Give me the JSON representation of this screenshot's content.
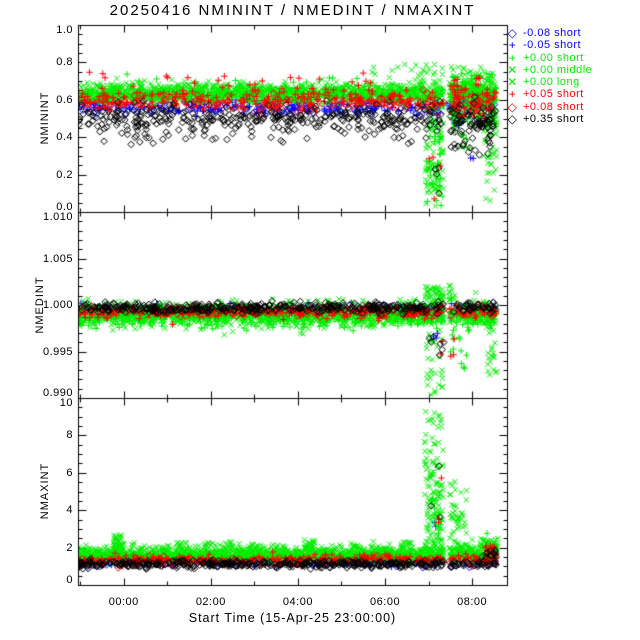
{
  "chart_data": {
    "type": "scatter",
    "title": "20250416 NMININT / NMEDINT / NMAXINT",
    "xlabel": "Start Time (15-Apr-25 23:00:00)",
    "background_color": "#ffffff",
    "axis_color": "#000000",
    "x_axis": {
      "unit": "hours relative to 2025-04-16 00:00",
      "range_hours": [
        -1.05,
        8.8
      ],
      "major_ticks": [
        {
          "h": 0,
          "label": "00:00"
        },
        {
          "h": 2,
          "label": "02:00"
        },
        {
          "h": 4,
          "label": "04:00"
        },
        {
          "h": 6,
          "label": "06:00"
        },
        {
          "h": 8,
          "label": "08:00"
        }
      ],
      "minor_step_hours": 1
    },
    "panels": [
      {
        "ylabel": "NMININT",
        "ylim": [
          0.0,
          1.0
        ],
        "minor": 0.05,
        "yticks": [
          {
            "v": 0.0,
            "label": "0.0"
          },
          {
            "v": 0.2,
            "label": "0.2"
          },
          {
            "v": 0.4,
            "label": "0.4"
          },
          {
            "v": 0.6,
            "label": "0.6"
          },
          {
            "v": 0.8,
            "label": "0.8"
          },
          {
            "v": 1.0,
            "label": "1.0"
          }
        ]
      },
      {
        "ylabel": "NMEDINT",
        "ylim": [
          0.99,
          1.01
        ],
        "minor": 0.001,
        "yticks": [
          {
            "v": 0.99,
            "label": "0.990"
          },
          {
            "v": 0.995,
            "label": "0.995"
          },
          {
            "v": 1.0,
            "label": "1.000"
          },
          {
            "v": 1.005,
            "label": "1.005"
          },
          {
            "v": 1.01,
            "label": "1.010"
          }
        ]
      },
      {
        "ylabel": "NMAXINT",
        "ylim": [
          0,
          10
        ],
        "minor": 0.5,
        "yticks": [
          {
            "v": 0,
            "label": "0"
          },
          {
            "v": 2,
            "label": "2"
          },
          {
            "v": 4,
            "label": "4"
          },
          {
            "v": 6,
            "label": "6"
          },
          {
            "v": 8,
            "label": "8"
          },
          {
            "v": 10,
            "label": "10"
          }
        ]
      }
    ],
    "events": {
      "data_start_hour": -1.03,
      "data_end_hour": 8.55,
      "data_gap_hours": [
        7.35,
        7.47
      ]
    },
    "series": [
      {
        "label": "-0.08 short",
        "color": "#0000ff",
        "marker": "diamond",
        "bands": [
          {
            "base": 0.555,
            "sigma": 0.02,
            "n": 130
          },
          {
            "base": 0.99945,
            "sigma": 0.0003,
            "n": 110
          },
          {
            "base": 1.18,
            "sigma": 0.1,
            "n": 110
          }
        ]
      },
      {
        "label": "-0.05 short",
        "color": "#0000ff",
        "marker": "plus",
        "bands": [
          {
            "base": 0.565,
            "sigma": 0.022,
            "n": 190
          },
          {
            "base": 0.9994,
            "sigma": 0.00035,
            "n": 160
          },
          {
            "base": 1.22,
            "sigma": 0.12,
            "n": 160
          }
        ]
      },
      {
        "label": "+0.00 short",
        "color": "#00ee00",
        "marker": "plus",
        "bands": [
          {
            "base": 0.615,
            "sigma": 0.02,
            "n": 560
          },
          {
            "base": 0.9987,
            "sigma": 0.00055,
            "n": 560
          },
          {
            "base": 1.5,
            "sigma": 0.13,
            "n": 600
          }
        ]
      },
      {
        "label": "+0.00 middle",
        "color": "#00ee00",
        "marker": "cross",
        "bands": [
          {
            "base": 0.635,
            "sigma": 0.02,
            "n": 560
          },
          {
            "base": 0.9989,
            "sigma": 0.0006,
            "n": 560
          },
          {
            "base": 1.65,
            "sigma": 0.16,
            "n": 600
          }
        ]
      },
      {
        "label": "+0.00 long",
        "color": "#00ee00",
        "marker": "cross",
        "bands": [
          {
            "base": 0.655,
            "sigma": 0.02,
            "n": 480
          },
          {
            "base": 0.9991,
            "sigma": 0.00065,
            "n": 480
          },
          {
            "base": 1.76,
            "sigma": 0.2,
            "n": 520
          }
        ]
      },
      {
        "label": "+0.05 short",
        "color": "#ff0000",
        "marker": "plus",
        "bands": [
          {
            "base": 0.6,
            "sigma": 0.027,
            "n": 260
          },
          {
            "base": 0.9992,
            "sigma": 0.00035,
            "n": 260
          },
          {
            "base": 1.32,
            "sigma": 0.14,
            "n": 260
          }
        ]
      },
      {
        "label": "+0.08 short",
        "color": "#ff0000",
        "marker": "diamond",
        "bands": [
          {
            "base": 0.578,
            "sigma": 0.02,
            "n": 140
          },
          {
            "base": 0.99935,
            "sigma": 0.0003,
            "n": 120
          },
          {
            "base": 1.28,
            "sigma": 0.12,
            "n": 120
          }
        ]
      },
      {
        "label": "+0.35 short",
        "color": "#000000",
        "marker": "diamond",
        "bands": [
          {
            "base": 0.5,
            "sigma": 0.038,
            "n": 380
          },
          {
            "base": 0.9997,
            "sigma": 0.00028,
            "n": 420
          },
          {
            "base": 1.12,
            "sigma": 0.1,
            "n": 420
          }
        ]
      }
    ],
    "features": [
      {
        "p": 0,
        "s": 3,
        "t": [
          6.92,
          7.34
        ],
        "y": [
          0.02,
          0.58
        ],
        "n": 60
      },
      {
        "p": 0,
        "s": 2,
        "t": [
          6.92,
          7.34
        ],
        "y": [
          0.02,
          0.5
        ],
        "n": 30
      },
      {
        "p": 0,
        "s": 4,
        "t": [
          6.95,
          7.3
        ],
        "y": [
          0.1,
          0.6
        ],
        "n": 25
      },
      {
        "p": 0,
        "s": 7,
        "t": [
          6.95,
          7.3
        ],
        "y": [
          0.1,
          0.25
        ],
        "n": 4
      },
      {
        "p": 0,
        "s": 5,
        "t": [
          6.98,
          7.3
        ],
        "y": [
          0.05,
          0.3
        ],
        "n": 4
      },
      {
        "p": 0,
        "s": 5,
        "t": [
          -0.9,
          7.3
        ],
        "y": [
          0.65,
          0.77
        ],
        "n": 22
      },
      {
        "p": 0,
        "s": 3,
        "t": [
          5.7,
          7.32
        ],
        "y": [
          0.67,
          0.79
        ],
        "n": 28
      },
      {
        "p": 0,
        "s": 2,
        "t": [
          -0.9,
          5.7
        ],
        "y": [
          0.67,
          0.74
        ],
        "n": 12
      },
      {
        "p": 0,
        "s": 7,
        "t": [
          -0.9,
          7.3
        ],
        "y": [
          0.36,
          0.45
        ],
        "n": 35
      },
      {
        "p": 0,
        "s": 2,
        "t": [
          7.5,
          8.55
        ],
        "y": [
          0.45,
          0.75
        ],
        "n": 90
      },
      {
        "p": 0,
        "s": 3,
        "t": [
          7.5,
          8.55
        ],
        "y": [
          0.5,
          0.78
        ],
        "n": 90
      },
      {
        "p": 0,
        "s": 4,
        "t": [
          7.5,
          8.5
        ],
        "y": [
          0.45,
          0.7
        ],
        "n": 60
      },
      {
        "p": 0,
        "s": 5,
        "t": [
          7.5,
          8.5
        ],
        "y": [
          0.5,
          0.72
        ],
        "n": 45
      },
      {
        "p": 0,
        "s": 7,
        "t": [
          7.5,
          8.45
        ],
        "y": [
          0.3,
          0.5
        ],
        "n": 40
      },
      {
        "p": 0,
        "s": 1,
        "t": [
          7.5,
          8.45
        ],
        "y": [
          0.45,
          0.6
        ],
        "n": 25
      },
      {
        "p": 0,
        "s": 3,
        "t": [
          8.25,
          8.57
        ],
        "y": [
          0.25,
          0.5
        ],
        "n": 30
      },
      {
        "p": 0,
        "s": 4,
        "t": [
          8.3,
          8.55
        ],
        "y": [
          0.05,
          0.3
        ],
        "n": 8
      },
      {
        "p": 0,
        "s": 2,
        "t": [
          7.6,
          8.2
        ],
        "y": [
          0.28,
          0.45
        ],
        "n": 8
      },
      {
        "p": 0,
        "s": 1,
        "t": [
          7.9,
          8.1
        ],
        "y": [
          0.28,
          0.33
        ],
        "n": 2
      },
      {
        "p": 1,
        "s": 3,
        "t": [
          6.92,
          7.62
        ],
        "y": [
          1.0004,
          1.0021
        ],
        "n": 50
      },
      {
        "p": 1,
        "s": 3,
        "t": [
          6.92,
          7.35
        ],
        "y": [
          0.9903,
          0.998
        ],
        "n": 30
      },
      {
        "p": 1,
        "s": 2,
        "t": [
          7.5,
          7.95
        ],
        "y": [
          0.993,
          0.998
        ],
        "n": 14
      },
      {
        "p": 1,
        "s": 7,
        "t": [
          7.0,
          7.8
        ],
        "y": [
          0.9938,
          0.9975
        ],
        "n": 7
      },
      {
        "p": 1,
        "s": 5,
        "t": [
          7.0,
          7.6
        ],
        "y": [
          0.994,
          0.9975
        ],
        "n": 5
      },
      {
        "p": 1,
        "s": 4,
        "t": [
          8.35,
          8.58
        ],
        "y": [
          0.9921,
          0.9988
        ],
        "n": 26
      },
      {
        "p": 1,
        "s": 1,
        "t": [
          7.05,
          7.3
        ],
        "y": [
          0.996,
          0.998
        ],
        "n": 3
      },
      {
        "p": 2,
        "s": 4,
        "t": [
          6.9,
          7.34
        ],
        "y": [
          1.9,
          9.3
        ],
        "n": 80
      },
      {
        "p": 2,
        "s": 3,
        "t": [
          6.95,
          7.34
        ],
        "y": [
          1.8,
          6.5
        ],
        "n": 40
      },
      {
        "p": 2,
        "s": 2,
        "t": [
          7.0,
          7.3
        ],
        "y": [
          1.8,
          5.0
        ],
        "n": 20
      },
      {
        "p": 2,
        "s": 7,
        "t": [
          7.05,
          7.3
        ],
        "y": [
          2.2,
          6.8
        ],
        "n": 3
      },
      {
        "p": 2,
        "s": 5,
        "t": [
          7.05,
          7.3
        ],
        "y": [
          2.0,
          6.6
        ],
        "n": 3
      },
      {
        "p": 2,
        "s": 1,
        "t": [
          7.1,
          7.25
        ],
        "y": [
          2.0,
          4.0
        ],
        "n": 2
      },
      {
        "p": 2,
        "s": 4,
        "t": [
          7.48,
          7.9
        ],
        "y": [
          1.9,
          5.6
        ],
        "n": 30
      },
      {
        "p": 2,
        "s": 3,
        "t": [
          7.48,
          7.8
        ],
        "y": [
          1.8,
          4.0
        ],
        "n": 15
      },
      {
        "p": 2,
        "s": 4,
        "t": [
          -0.25,
          -0.02
        ],
        "y": [
          1.9,
          2.7
        ],
        "n": 40
      },
      {
        "p": 2,
        "s": 4,
        "t": [
          1.2,
          1.45
        ],
        "y": [
          1.9,
          2.3
        ],
        "n": 14
      },
      {
        "p": 2,
        "s": 4,
        "t": [
          1.85,
          2.05
        ],
        "y": [
          1.9,
          2.25
        ],
        "n": 10
      },
      {
        "p": 2,
        "s": 4,
        "t": [
          2.3,
          2.5
        ],
        "y": [
          1.9,
          2.3
        ],
        "n": 12
      },
      {
        "p": 2,
        "s": 4,
        "t": [
          2.85,
          3.05
        ],
        "y": [
          1.9,
          2.2
        ],
        "n": 10
      },
      {
        "p": 2,
        "s": 4,
        "t": [
          4.15,
          4.45
        ],
        "y": [
          1.9,
          2.45
        ],
        "n": 18
      },
      {
        "p": 2,
        "s": 4,
        "t": [
          5.25,
          5.45
        ],
        "y": [
          1.9,
          2.2
        ],
        "n": 10
      },
      {
        "p": 2,
        "s": 4,
        "t": [
          6.35,
          6.6
        ],
        "y": [
          1.9,
          2.3
        ],
        "n": 12
      },
      {
        "p": 2,
        "s": 4,
        "t": [
          8.2,
          8.6
        ],
        "y": [
          1.8,
          2.5
        ],
        "n": 30
      },
      {
        "p": 2,
        "s": 3,
        "t": [
          8.25,
          8.55
        ],
        "y": [
          1.7,
          2.3
        ],
        "n": 20
      },
      {
        "p": 2,
        "s": 5,
        "t": [
          8.3,
          8.55
        ],
        "y": [
          1.5,
          2.1
        ],
        "n": 14
      },
      {
        "p": 2,
        "s": 7,
        "t": [
          8.3,
          8.55
        ],
        "y": [
          1.4,
          1.9
        ],
        "n": 12
      },
      {
        "p": 2,
        "s": 2,
        "t": [
          8.32,
          8.4
        ],
        "y": [
          2.7,
          2.9
        ],
        "n": 1
      }
    ]
  }
}
